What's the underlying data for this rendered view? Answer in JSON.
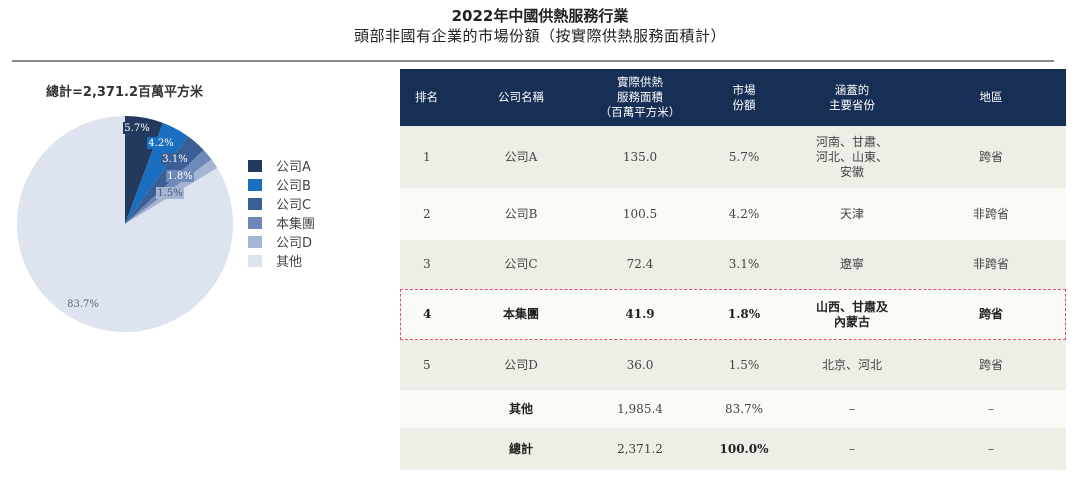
{
  "title": {
    "line1": "2022年中國供熱服務行業",
    "line2": "頭部非國有企業的市場份額（按實際供熱服務面積計）"
  },
  "pie": {
    "total_label": "總計=2,371.2百萬平方米"
  },
  "legend": [
    {
      "label": "公司A",
      "color": "#233a5e"
    },
    {
      "label": "公司B",
      "color": "#1a6fc0"
    },
    {
      "label": "公司C",
      "color": "#3b5e94"
    },
    {
      "label": "本集團",
      "color": "#6e88b8"
    },
    {
      "label": "公司D",
      "color": "#a5b5d3"
    },
    {
      "label": "其他",
      "color": "#dde3ef"
    }
  ],
  "table": {
    "headers": {
      "rank": "排名",
      "company": "公司名稱",
      "area_l1": "實際供熱",
      "area_l2": "服務面積",
      "area_l3": "（百萬平方米）",
      "share_l1": "市場",
      "share_l2": "份額",
      "prov_l1": "涵蓋的",
      "prov_l2": "主要省份",
      "region": "地區"
    },
    "rows": [
      {
        "rank": "1",
        "company": "公司A",
        "area": "135.0",
        "share": "5.7%",
        "prov_l1": "河南、甘肅、",
        "prov_l2": "河北、山東、",
        "prov_l3": "安徽",
        "region": "跨省"
      },
      {
        "rank": "2",
        "company": "公司B",
        "area": "100.5",
        "share": "4.2%",
        "prov_l1": "天津",
        "region": "非跨省"
      },
      {
        "rank": "3",
        "company": "公司C",
        "area": "72.4",
        "share": "3.1%",
        "prov_l1": "遼寧",
        "region": "非跨省"
      },
      {
        "rank": "4",
        "company": "本集團",
        "area": "41.9",
        "share": "1.8%",
        "prov_l1": "山西、甘肅及",
        "prov_l2": "內蒙古",
        "region": "跨省"
      },
      {
        "rank": "5",
        "company": "公司D",
        "area": "36.0",
        "share": "1.5%",
        "prov_l1": "北京、河北",
        "region": "跨省"
      },
      {
        "rank": "",
        "company": "其他",
        "area": "1,985.4",
        "share": "83.7%",
        "prov_l1": "–",
        "region": "–"
      },
      {
        "rank": "",
        "company": "總計",
        "area": "2,371.2",
        "share": "100.0%",
        "prov_l1": "–",
        "region": "–"
      }
    ]
  },
  "chart_data": {
    "type": "pie",
    "title": "2022年中國供熱服務行業 頭部非國有企業的市場份額（按實際供熱服務面積計）",
    "subtitle": "總計=2,371.2百萬平方米",
    "categories": [
      "公司A",
      "公司B",
      "公司C",
      "本集團",
      "公司D",
      "其他"
    ],
    "values": [
      5.7,
      4.2,
      3.1,
      1.8,
      1.5,
      83.7
    ],
    "labels": [
      "5.7%",
      "4.2%",
      "3.1%",
      "1.8%",
      "1.5%",
      "83.7%"
    ],
    "colors": [
      "#233a5e",
      "#1a6fc0",
      "#3b5e94",
      "#6e88b8",
      "#a5b5d3",
      "#dde3ef"
    ],
    "legend_position": "right",
    "table": {
      "columns": [
        "排名",
        "公司名稱",
        "實際供熱服務面積（百萬平方米）",
        "市場份額",
        "涵蓋的主要省份",
        "地區"
      ],
      "rows": [
        [
          "1",
          "公司A",
          135.0,
          "5.7%",
          "河南、甘肅、河北、山東、安徽",
          "跨省"
        ],
        [
          "2",
          "公司B",
          100.5,
          "4.2%",
          "天津",
          "非跨省"
        ],
        [
          "3",
          "公司C",
          72.4,
          "3.1%",
          "遼寧",
          "非跨省"
        ],
        [
          "4",
          "本集團",
          41.9,
          "1.8%",
          "山西、甘肅及內蒙古",
          "跨省"
        ],
        [
          "5",
          "公司D",
          36.0,
          "1.5%",
          "北京、河北",
          "跨省"
        ],
        [
          "",
          "其他",
          1985.4,
          "83.7%",
          "–",
          "–"
        ],
        [
          "",
          "總計",
          2371.2,
          "100.0%",
          "–",
          "–"
        ]
      ]
    }
  }
}
